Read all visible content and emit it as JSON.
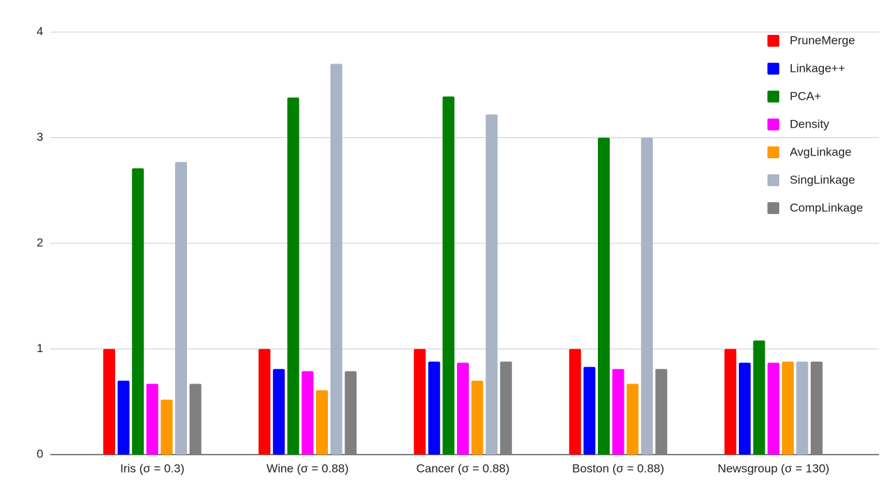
{
  "chart_data": {
    "type": "bar",
    "categories": [
      "Iris (σ = 0.3)",
      "Wine (σ = 0.88)",
      "Cancer (σ = 0.88)",
      "Boston (σ = 0.88)",
      "Newsgroup (σ = 130)"
    ],
    "series": [
      {
        "name": "PruneMerge",
        "color": "#ff0000",
        "values": [
          1,
          1,
          1,
          1,
          1
        ]
      },
      {
        "name": "Linkage++",
        "color": "#0000ff",
        "values": [
          0.7,
          0.81,
          0.88,
          0.83,
          0.87
        ]
      },
      {
        "name": "PCA+",
        "color": "#008000",
        "values": [
          2.71,
          3.38,
          3.39,
          3.0,
          1.08
        ]
      },
      {
        "name": "Density",
        "color": "#ff00ff",
        "values": [
          0.67,
          0.79,
          0.87,
          0.81,
          0.87
        ]
      },
      {
        "name": "AvgLinkage",
        "color": "#ff9900",
        "values": [
          0.52,
          0.61,
          0.7,
          0.67,
          0.88
        ]
      },
      {
        "name": "SingLinkage",
        "color": "#a9b4c6",
        "values": [
          2.77,
          3.7,
          3.22,
          3.0,
          0.88
        ]
      },
      {
        "name": "CompLinkage",
        "color": "#808080",
        "values": [
          0.67,
          0.79,
          0.88,
          0.81,
          0.88
        ]
      }
    ],
    "ylim": [
      0,
      4
    ],
    "yticks": [
      0,
      1,
      2,
      3,
      4
    ],
    "grid": true,
    "legend": "top-right"
  }
}
